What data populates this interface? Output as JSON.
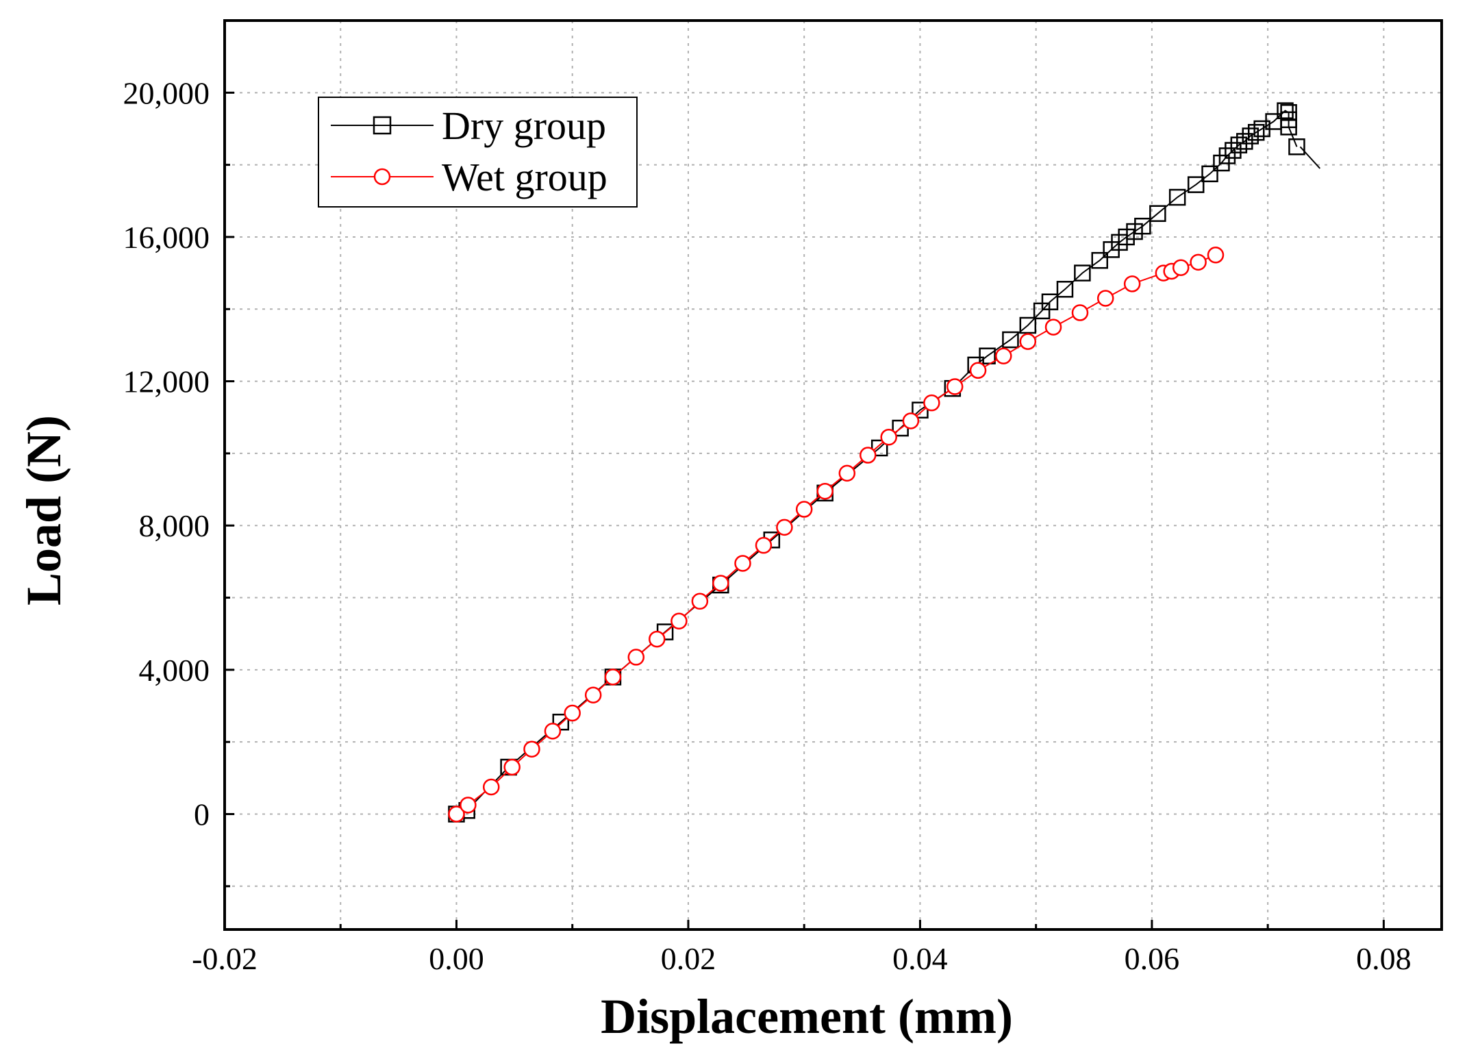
{
  "chart_data": {
    "type": "line",
    "title": "",
    "xlabel": "Displacement (mm)",
    "ylabel": "Load (N)",
    "xlim": [
      -0.02,
      0.085
    ],
    "ylim": [
      -3200,
      22000
    ],
    "x_ticks": [
      -0.02,
      0.0,
      0.02,
      0.04,
      0.06,
      0.08
    ],
    "x_tick_labels": [
      "-0.02",
      "0.00",
      "0.02",
      "0.04",
      "0.06",
      "0.08"
    ],
    "x_minor_ticks": [
      -0.01,
      0.01,
      0.03,
      0.05,
      0.07
    ],
    "y_ticks": [
      0,
      4000,
      8000,
      12000,
      16000,
      20000
    ],
    "y_tick_labels": [
      "0",
      "4,000",
      "8,000",
      "12,000",
      "16,000",
      "20,000"
    ],
    "y_minor_ticks": [
      -2000,
      2000,
      6000,
      10000,
      14000,
      18000
    ],
    "grid": true,
    "legend_position": "top-left",
    "series": [
      {
        "name": "Dry group",
        "color": "#000000",
        "marker": "square",
        "line_only_tail": [
          [
            0.0728,
            18500
          ],
          [
            0.0745,
            17900
          ]
        ],
        "points": [
          [
            0.0,
            0
          ],
          [
            0.0009,
            100
          ],
          [
            0.0045,
            1300
          ],
          [
            0.009,
            2550
          ],
          [
            0.0135,
            3800
          ],
          [
            0.018,
            5050
          ],
          [
            0.0228,
            6350
          ],
          [
            0.0272,
            7600
          ],
          [
            0.0318,
            8900
          ],
          [
            0.0365,
            10150
          ],
          [
            0.0383,
            10700
          ],
          [
            0.04,
            11200
          ],
          [
            0.0428,
            11800
          ],
          [
            0.0448,
            12450
          ],
          [
            0.0458,
            12700
          ],
          [
            0.0478,
            13150
          ],
          [
            0.0493,
            13550
          ],
          [
            0.0505,
            13950
          ],
          [
            0.0512,
            14200
          ],
          [
            0.0525,
            14550
          ],
          [
            0.054,
            15000
          ],
          [
            0.0555,
            15350
          ],
          [
            0.0565,
            15650
          ],
          [
            0.0572,
            15850
          ],
          [
            0.0578,
            16000
          ],
          [
            0.0585,
            16150
          ],
          [
            0.0592,
            16300
          ],
          [
            0.0605,
            16650
          ],
          [
            0.0622,
            17100
          ],
          [
            0.0638,
            17450
          ],
          [
            0.065,
            17750
          ],
          [
            0.066,
            18050
          ],
          [
            0.0665,
            18250
          ],
          [
            0.067,
            18400
          ],
          [
            0.0675,
            18550
          ],
          [
            0.068,
            18650
          ],
          [
            0.0685,
            18800
          ],
          [
            0.069,
            18900
          ],
          [
            0.0695,
            19000
          ],
          [
            0.0705,
            19200
          ],
          [
            0.0715,
            19500
          ],
          [
            0.0718,
            19450
          ],
          [
            0.0718,
            19250
          ],
          [
            0.0718,
            19050
          ],
          [
            0.0725,
            18500
          ]
        ]
      },
      {
        "name": "Wet group",
        "color": "#ff0000",
        "marker": "circle",
        "points": [
          [
            0.0,
            0
          ],
          [
            0.001,
            250
          ],
          [
            0.003,
            750
          ],
          [
            0.0048,
            1300
          ],
          [
            0.0065,
            1800
          ],
          [
            0.0083,
            2300
          ],
          [
            0.01,
            2800
          ],
          [
            0.0118,
            3300
          ],
          [
            0.0135,
            3800
          ],
          [
            0.0155,
            4350
          ],
          [
            0.0173,
            4850
          ],
          [
            0.0192,
            5350
          ],
          [
            0.021,
            5900
          ],
          [
            0.0228,
            6400
          ],
          [
            0.0247,
            6950
          ],
          [
            0.0265,
            7450
          ],
          [
            0.0283,
            7950
          ],
          [
            0.03,
            8450
          ],
          [
            0.0318,
            8950
          ],
          [
            0.0337,
            9450
          ],
          [
            0.0355,
            9950
          ],
          [
            0.0373,
            10450
          ],
          [
            0.0392,
            10900
          ],
          [
            0.041,
            11400
          ],
          [
            0.043,
            11850
          ],
          [
            0.045,
            12300
          ],
          [
            0.0472,
            12700
          ],
          [
            0.0493,
            13100
          ],
          [
            0.0515,
            13500
          ],
          [
            0.0538,
            13900
          ],
          [
            0.056,
            14300
          ],
          [
            0.0583,
            14700
          ],
          [
            0.061,
            15000
          ],
          [
            0.0617,
            15050
          ],
          [
            0.0625,
            15150
          ],
          [
            0.064,
            15300
          ],
          [
            0.0655,
            15500
          ]
        ]
      }
    ]
  }
}
